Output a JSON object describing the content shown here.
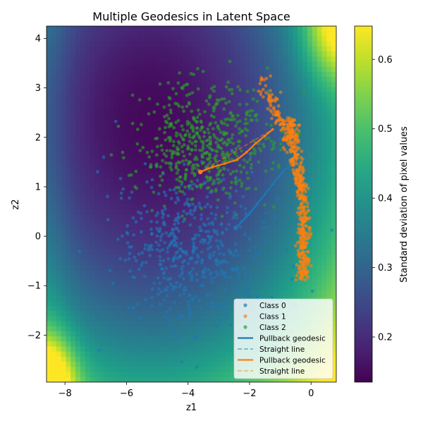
{
  "chart_data": {
    "type": "scatter",
    "title": "Multiple Geodesics in Latent Space",
    "xlabel": "z1",
    "ylabel": "z2",
    "xlim": [
      -8.6,
      0.82
    ],
    "ylim": [
      -2.95,
      4.25
    ],
    "xticks": [
      -8,
      -6,
      -4,
      -2,
      0
    ],
    "yticks": [
      -2,
      -1,
      0,
      1,
      2,
      3,
      4
    ],
    "grid": false,
    "legend_position": "lower-right",
    "background": {
      "type": "heatmap",
      "description_value": "std of decoded pixel values over latent grid",
      "colormap": "viridis",
      "low_region_center": [
        -5.2,
        2.3
      ],
      "high_corners": [
        [
          -8.6,
          -2.95
        ],
        [
          0.82,
          4.25
        ]
      ]
    },
    "colorbar": {
      "label": "Standard deviation of pixel values",
      "min": 0.135,
      "max": 0.648,
      "ticks": [
        0.2,
        0.3,
        0.4,
        0.5,
        0.6
      ]
    },
    "series": [
      {
        "name": "Class 0",
        "kind": "points",
        "color": "#1f77b4",
        "center": [
          -3.9,
          -0.3
        ],
        "spread": [
          1.25,
          0.85
        ],
        "count": 520
      },
      {
        "name": "Class 1",
        "kind": "points",
        "color": "#ff7f0e",
        "center": [
          -0.3,
          0.6
        ],
        "spread": [
          0.2,
          1.4
        ],
        "count": 520
      },
      {
        "name": "Class 2",
        "kind": "points",
        "color": "#2ca02c",
        "center": [
          -3.4,
          1.9
        ],
        "spread": [
          1.1,
          0.6
        ],
        "count": 520
      }
    ],
    "geodesics": [
      {
        "name": "Pullback geodesic",
        "color": "#1f77b4",
        "style": "solid",
        "points": [
          [
            -2.45,
            0.17
          ],
          [
            -2.25,
            0.3
          ],
          [
            -2.0,
            0.45
          ],
          [
            -1.75,
            0.65
          ],
          [
            -1.5,
            0.85
          ],
          [
            -1.25,
            1.05
          ],
          [
            -1.0,
            1.25
          ],
          [
            -0.75,
            1.4
          ]
        ]
      },
      {
        "name": "Straight line",
        "color": "#1f77b4",
        "style": "dashed",
        "points": [
          [
            -2.45,
            0.17
          ],
          [
            -0.75,
            1.4
          ]
        ]
      },
      {
        "name": "Pullback geodesic",
        "color": "#ff7f0e",
        "style": "solid",
        "points": [
          [
            -3.6,
            1.3
          ],
          [
            -3.2,
            1.4
          ],
          [
            -2.8,
            1.47
          ],
          [
            -2.4,
            1.55
          ],
          [
            -2.1,
            1.7
          ],
          [
            -1.8,
            1.88
          ],
          [
            -1.5,
            2.03
          ],
          [
            -1.25,
            2.16
          ]
        ]
      },
      {
        "name": "Straight line",
        "color": "#ff7f0e",
        "style": "dashed",
        "points": [
          [
            -3.6,
            1.3
          ],
          [
            -1.25,
            2.16
          ]
        ]
      }
    ],
    "legend": [
      {
        "label": "Class 0",
        "marker": "dot",
        "color": "#1f77b4"
      },
      {
        "label": "Class 1",
        "marker": "dot",
        "color": "#ff7f0e"
      },
      {
        "label": "Class 2",
        "marker": "dot",
        "color": "#2ca02c"
      },
      {
        "label": "Pullback geodesic",
        "marker": "solid-line",
        "color": "#1f77b4"
      },
      {
        "label": "Straight line",
        "marker": "dashed-line",
        "color": "#1f77b4"
      },
      {
        "label": "Pullback geodesic",
        "marker": "solid-line",
        "color": "#ff7f0e"
      },
      {
        "label": "Straight line",
        "marker": "dashed-line",
        "color": "#ff7f0e"
      }
    ]
  }
}
